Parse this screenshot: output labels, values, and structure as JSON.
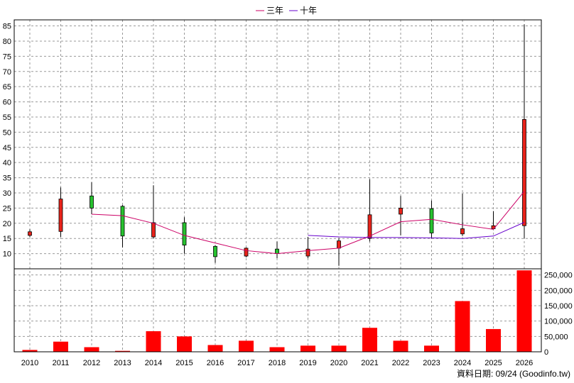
{
  "legend": [
    {
      "label": "三年",
      "color": "#cc0066"
    },
    {
      "label": "十年",
      "color": "#6600cc"
    }
  ],
  "source_note": "資料日期: 09/24  (Goodinfo.tw)",
  "colors": {
    "up": "#e8231a",
    "down": "#27c22f",
    "volume": "#ff0000",
    "wick": "#000000"
  },
  "chart_data": {
    "type": "candlestick+bar",
    "categories": [
      "2010",
      "2011",
      "2012",
      "2013",
      "2014",
      "2015",
      "2016",
      "2017",
      "2018",
      "2019",
      "2020",
      "2021",
      "2022",
      "2023",
      "2024",
      "2025",
      "2026"
    ],
    "price": {
      "ylim": [
        5,
        87
      ],
      "yticks": [
        10,
        15,
        20,
        25,
        30,
        35,
        40,
        45,
        50,
        55,
        60,
        65,
        70,
        75,
        80,
        85
      ],
      "ohlc": [
        {
          "open": 16.0,
          "close": 17.2,
          "high": 18.0,
          "low": 15.5
        },
        {
          "open": 17.3,
          "close": 28.0,
          "high": 31.8,
          "low": 15.5
        },
        {
          "open": 29.0,
          "close": 25.0,
          "high": 33.5,
          "low": 23.0
        },
        {
          "open": 25.6,
          "close": 15.8,
          "high": 26.0,
          "low": 12.0
        },
        {
          "open": 15.5,
          "close": 20.2,
          "high": 32.5,
          "low": 15.0
        },
        {
          "open": 20.2,
          "close": 12.8,
          "high": 22.0,
          "low": 10.0
        },
        {
          "open": 12.4,
          "close": 9.0,
          "high": 12.8,
          "low": 7.0
        },
        {
          "open": 9.2,
          "close": 11.8,
          "high": 12.0,
          "low": 8.8
        },
        {
          "open": 11.5,
          "close": 10.0,
          "high": 14.0,
          "low": 8.5
        },
        {
          "open": 9.2,
          "close": 11.5,
          "high": 15.5,
          "low": 8.5
        },
        {
          "open": 11.8,
          "close": 14.2,
          "high": 15.0,
          "low": 6.0
        },
        {
          "open": 15.0,
          "close": 22.8,
          "high": 34.5,
          "low": 14.0
        },
        {
          "open": 23.0,
          "close": 25.0,
          "high": 29.0,
          "low": 16.0
        },
        {
          "open": 24.8,
          "close": 16.8,
          "high": 27.5,
          "low": 15.0
        },
        {
          "open": 16.5,
          "close": 18.2,
          "high": 29.8,
          "low": 15.8
        },
        {
          "open": 18.2,
          "close": 19.2,
          "high": 24.0,
          "low": 18.0
        },
        {
          "open": 19.2,
          "close": 54.2,
          "high": 85.5,
          "low": 15.0
        }
      ],
      "series": [
        {
          "name": "三年",
          "start_index": 2,
          "values": [
            23.0,
            22.5,
            20.0,
            16.0,
            13.5,
            11.0,
            10.0,
            11.0,
            11.8,
            15.8,
            20.5,
            21.3,
            19.5,
            18.0,
            30.5
          ]
        },
        {
          "name": "十年",
          "start_index": 9,
          "values": [
            16.0,
            15.5,
            15.3,
            15.3,
            15.2,
            15.0,
            15.8,
            20.3
          ]
        }
      ]
    },
    "volume": {
      "ylim": [
        0,
        270000
      ],
      "yticks": [
        0,
        50000,
        100000,
        150000,
        200000,
        250000
      ],
      "ytick_labels": [
        "0",
        "50,000",
        "100,000",
        "150,000",
        "200,000",
        "250,000"
      ],
      "values": [
        6000,
        33000,
        15000,
        3000,
        67000,
        50000,
        22000,
        36000,
        15000,
        20000,
        20000,
        78000,
        36000,
        20000,
        165000,
        74000,
        265000
      ]
    }
  }
}
